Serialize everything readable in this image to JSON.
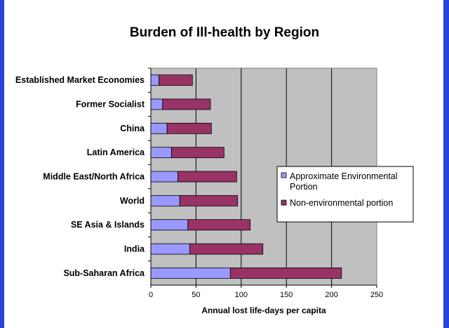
{
  "chart_data": {
    "type": "bar",
    "orientation": "horizontal",
    "stacked": true,
    "title": "Burden of Ill-health by Region",
    "xlabel": "Annual lost life-days per capita",
    "ylabel": "",
    "xlim": [
      0,
      250
    ],
    "xticks": [
      "0",
      "50",
      "100",
      "150",
      "200",
      "250"
    ],
    "categories": [
      "Established Market Economies",
      "Former Socialist",
      "China",
      "Latin America",
      "Middle East/North Africa",
      "World",
      "SE Asia & Islands",
      "India",
      "Sub-Saharan Africa"
    ],
    "series": [
      {
        "name": "Approximate Environmental Portion",
        "color": "#9999ff",
        "values": [
          9,
          13,
          18,
          23,
          30,
          32,
          41,
          43,
          88
        ]
      },
      {
        "name": "Non-environmental portion",
        "color": "#993366",
        "values": [
          37,
          53,
          49,
          58,
          65,
          64,
          69,
          81,
          123
        ]
      }
    ],
    "grid": true,
    "plot_background": "#c0c0c0",
    "legend_position": "right"
  }
}
